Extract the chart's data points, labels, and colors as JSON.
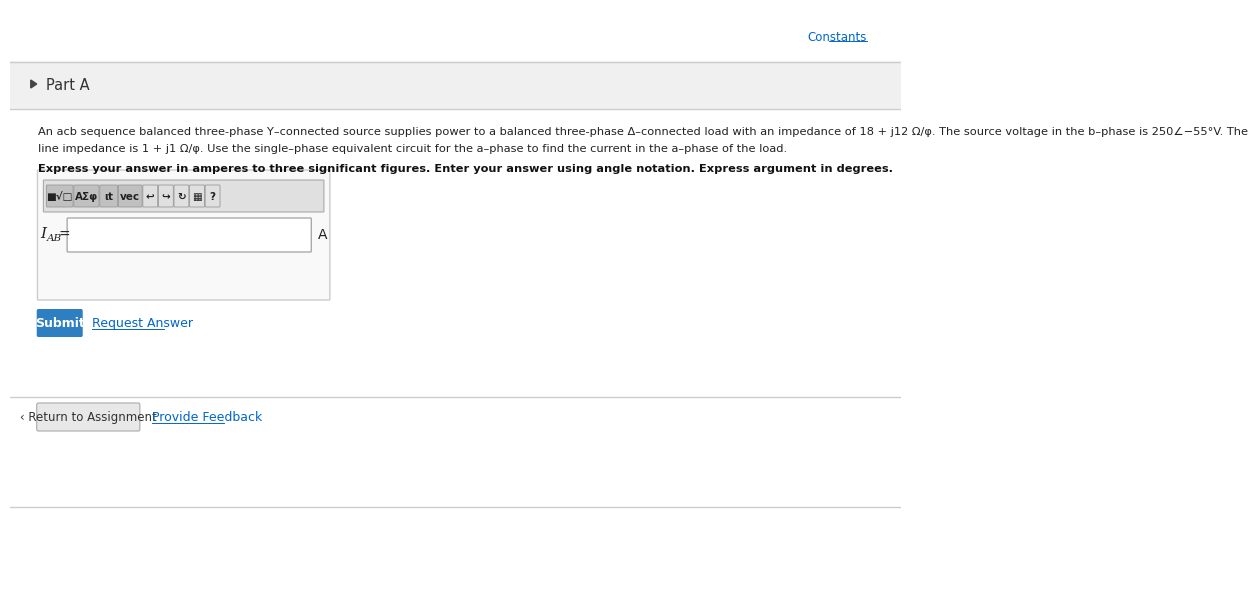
{
  "bg_color": "#ffffff",
  "top_bar_color": "#f5f5f5",
  "border_color": "#cccccc",
  "constants_text": "Constants",
  "constants_color": "#0066cc",
  "part_a_text": "Part A",
  "main_text_line1": "An acb sequence balanced three-phase Y–connected source supplies power to a balanced three-phase Δ–connected load with an impedance of 18 + j12 Ω/φ. The source voltage in the b–phase is 250∠−55°V. The",
  "main_text_line2": "line impedance is 1 + j1 Ω/φ. Use the single–phase equivalent circuit for the a–phase to find the current in the a–phase of the load.",
  "bold_text": "Express your answer in amperes to three significant figures. Enter your answer using angle notation. Express argument in degrees.",
  "unit_label": "A",
  "submit_text": "Submit",
  "submit_bg": "#2d7fc1",
  "submit_text_color": "#ffffff",
  "request_answer_text": "Request Answer",
  "request_answer_color": "#0066cc",
  "return_text": "‹ Return to Assignment",
  "return_bg": "#e8e8e8",
  "return_border": "#aaaaaa",
  "provide_feedback_text": "Provide Feedback",
  "provide_feedback_color": "#0066cc",
  "toolbar_bg": "#e0e0e0",
  "toolbar_border": "#aaaaaa",
  "input_bg": "#ffffff",
  "input_border": "#aaaaaa",
  "outer_box_bg": "#f9f9f9",
  "outer_box_border": "#cccccc",
  "separator_color": "#cccccc"
}
